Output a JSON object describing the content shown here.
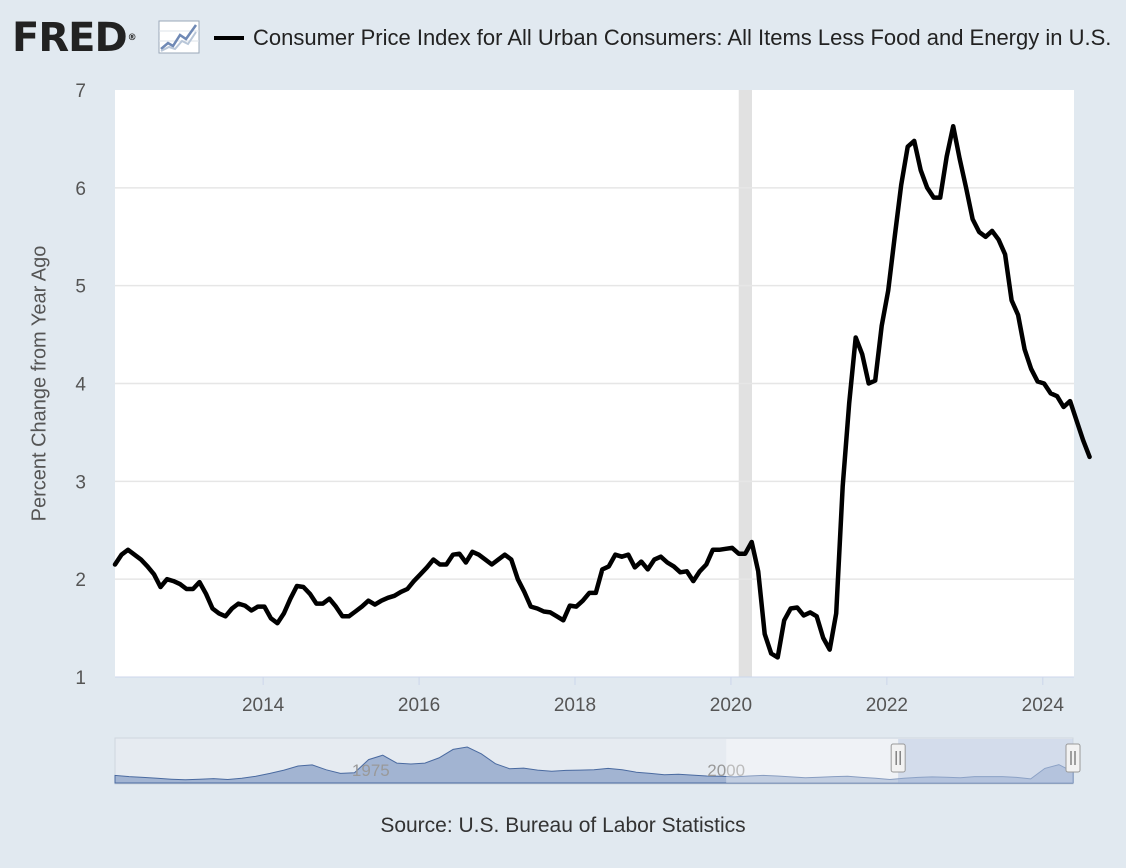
{
  "header": {
    "logo_text": "FRED",
    "logo_mark": "®",
    "logo_icon": "line-graph-icon",
    "title": "Consumer Price Index for All Urban Consumers: All Items Less Food and Energy in U.S. City Average"
  },
  "source": "Source: U.S. Bureau of Labor Statistics",
  "colors": {
    "series": "#000000",
    "recession": "#e1e1e1",
    "navigator_fill": "#8ba2c7",
    "navigator_line": "#4a6aa0",
    "navigator_mask": "#c2cfe6"
  },
  "navigator": {
    "labels": [
      {
        "text": "1975",
        "year": 1975
      },
      {
        "text": "2000",
        "year": 2000
      }
    ],
    "range_start": 1957,
    "range_end": 2024.4,
    "selected_start": 2012.1,
    "selected_end": 2024.4,
    "values": [
      2.6,
      2.2,
      1.9,
      1.6,
      1.3,
      1.1,
      1.3,
      1.5,
      1.2,
      1.6,
      2.3,
      3.3,
      4.4,
      5.8,
      6.2,
      4.5,
      3.3,
      3.5,
      8.0,
      9.5,
      6.8,
      6.5,
      6.8,
      8.6,
      11.5,
      12.3,
      10.0,
      6.6,
      4.9,
      5.1,
      4.4,
      4.0,
      4.3,
      4.4,
      4.5,
      5.0,
      4.5,
      3.7,
      3.3,
      2.8,
      3.0,
      2.7,
      2.4,
      2.3,
      2.1,
      2.4,
      2.6,
      2.4,
      2.1,
      1.8,
      2.0,
      2.2,
      2.3,
      1.9,
      1.6,
      1.2,
      1.6,
      1.9,
      2.1,
      2.0,
      1.8,
      2.2,
      2.2,
      2.2,
      1.9,
      1.4,
      5.0,
      6.3,
      3.8
    ]
  },
  "chart_data": {
    "type": "line",
    "title": "Consumer Price Index for All Urban Consumers: All Items Less Food and Energy in U.S. City Average",
    "ylabel": "Percent Change from Year Ago",
    "xlabel": "",
    "ylim": [
      1,
      7
    ],
    "xlim": [
      2012.1,
      2024.4
    ],
    "y_ticks": [
      1,
      2,
      3,
      4,
      5,
      6,
      7
    ],
    "x_ticks": [
      2014,
      2016,
      2018,
      2020,
      2022,
      2024
    ],
    "grid": true,
    "recession_shading": [
      [
        2020.1,
        2020.27
      ]
    ],
    "series": [
      {
        "name": "Consumer Price Index for All Urban Consumers: All Items Less Food and Energy in U.S. City Average",
        "x_start": 2012.1,
        "x_step_months": 1,
        "values": [
          2.15,
          2.25,
          2.3,
          2.25,
          2.2,
          2.13,
          2.05,
          1.92,
          2.0,
          1.98,
          1.95,
          1.9,
          1.9,
          1.97,
          1.85,
          1.7,
          1.65,
          1.62,
          1.7,
          1.75,
          1.73,
          1.68,
          1.72,
          1.72,
          1.6,
          1.55,
          1.65,
          1.8,
          1.93,
          1.92,
          1.85,
          1.75,
          1.75,
          1.8,
          1.72,
          1.62,
          1.62,
          1.67,
          1.72,
          1.78,
          1.74,
          1.78,
          1.81,
          1.83,
          1.87,
          1.9,
          1.98,
          2.05,
          2.12,
          2.2,
          2.15,
          2.15,
          2.25,
          2.26,
          2.17,
          2.28,
          2.25,
          2.2,
          2.15,
          2.2,
          2.25,
          2.2,
          2.0,
          1.87,
          1.72,
          1.7,
          1.67,
          1.66,
          1.62,
          1.58,
          1.73,
          1.72,
          1.78,
          1.86,
          1.86,
          2.1,
          2.13,
          2.25,
          2.23,
          2.25,
          2.12,
          2.18,
          2.1,
          2.2,
          2.23,
          2.17,
          2.13,
          2.07,
          2.08,
          1.98,
          2.08,
          2.15,
          2.3,
          2.3,
          2.31,
          2.32,
          2.26,
          2.26,
          2.38,
          2.08,
          1.44,
          1.24,
          1.2,
          1.58,
          1.7,
          1.71,
          1.63,
          1.66,
          1.62,
          1.4,
          1.28,
          1.65,
          2.95,
          3.8,
          4.47,
          4.3,
          4.0,
          4.03,
          4.59,
          4.95,
          5.5,
          6.03,
          6.42,
          6.48,
          6.18,
          6.0,
          5.9,
          5.9,
          6.32,
          6.63,
          6.3,
          6.0,
          5.68,
          5.55,
          5.5,
          5.56,
          5.47,
          5.32,
          4.85,
          4.7,
          4.35,
          4.15,
          4.02,
          4.0,
          3.9,
          3.87,
          3.76,
          3.82,
          3.62,
          3.42,
          3.25
        ]
      }
    ]
  }
}
